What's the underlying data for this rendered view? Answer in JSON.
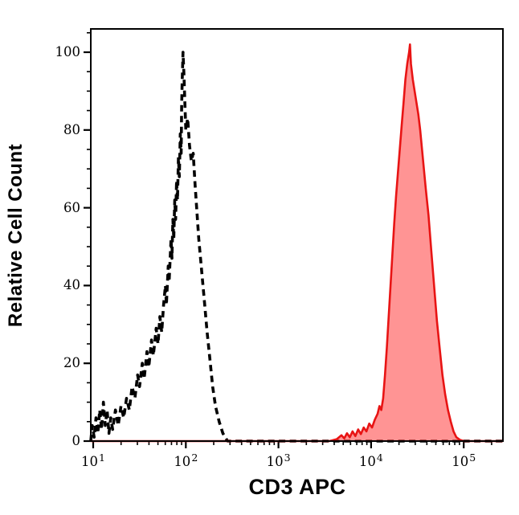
{
  "figure": {
    "x_axis_title": "CD3 APC",
    "y_axis_title": "Relative Cell Count",
    "y_tick_values": [
      0,
      20,
      40,
      60,
      80,
      100
    ],
    "y_minor_step": 5,
    "x_tick_exponents": [
      1,
      2,
      3,
      4,
      5
    ],
    "x_tick_base": "10",
    "colors": {
      "frame": "#000000",
      "dashed_series": "#000000",
      "red_stroke": "#e81414",
      "red_fill": "rgba(255,70,70,0.58)"
    }
  },
  "chart_data": {
    "type": "area",
    "subtype": "flow-cytometry-overlay-histogram",
    "title": "",
    "xlabel": "CD3 APC",
    "ylabel": "Relative Cell Count",
    "x_scale": "log10",
    "x_range_log10": [
      0.974,
      5.424
    ],
    "ylim": [
      0,
      106
    ],
    "grid": false,
    "legend": "none",
    "series": [
      {
        "name": "negative control (black dashed outline)",
        "style": {
          "stroke": "#000000",
          "stroke_width": 3.6,
          "dash": [
            8,
            5.5
          ],
          "fill": "none"
        },
        "peak": {
          "x_approx": 90,
          "height": 100
        },
        "points_log10x_count": [
          [
            0.974,
            0
          ],
          [
            0.99,
            4
          ],
          [
            1.01,
            1
          ],
          [
            1.03,
            6
          ],
          [
            1.05,
            2
          ],
          [
            1.07,
            8
          ],
          [
            1.09,
            3
          ],
          [
            1.11,
            10
          ],
          [
            1.13,
            4
          ],
          [
            1.15,
            8
          ],
          [
            1.17,
            2
          ],
          [
            1.19,
            6
          ],
          [
            1.21,
            3
          ],
          [
            1.24,
            8
          ],
          [
            1.27,
            4
          ],
          [
            1.3,
            9
          ],
          [
            1.33,
            6
          ],
          [
            1.36,
            11
          ],
          [
            1.39,
            8
          ],
          [
            1.42,
            14
          ],
          [
            1.45,
            11
          ],
          [
            1.48,
            17
          ],
          [
            1.5,
            14
          ],
          [
            1.53,
            20
          ],
          [
            1.55,
            16
          ],
          [
            1.58,
            23
          ],
          [
            1.6,
            19
          ],
          [
            1.63,
            26
          ],
          [
            1.65,
            22
          ],
          [
            1.68,
            29
          ],
          [
            1.7,
            25
          ],
          [
            1.72,
            32
          ],
          [
            1.74,
            28
          ],
          [
            1.76,
            35
          ],
          [
            1.78,
            40
          ],
          [
            1.79,
            35
          ],
          [
            1.81,
            45
          ],
          [
            1.82,
            41
          ],
          [
            1.84,
            52
          ],
          [
            1.85,
            47
          ],
          [
            1.86,
            57
          ],
          [
            1.87,
            52
          ],
          [
            1.88,
            62
          ],
          [
            1.89,
            57
          ],
          [
            1.9,
            67
          ],
          [
            1.91,
            62
          ],
          [
            1.92,
            73
          ],
          [
            1.93,
            68
          ],
          [
            1.94,
            79
          ],
          [
            1.95,
            74
          ],
          [
            1.955,
            86
          ],
          [
            1.96,
            92
          ],
          [
            1.97,
            100
          ],
          [
            1.98,
            94
          ],
          [
            1.99,
            87
          ],
          [
            2.0,
            80
          ],
          [
            2.02,
            83
          ],
          [
            2.04,
            76
          ],
          [
            2.06,
            72
          ],
          [
            2.08,
            74
          ],
          [
            2.1,
            66
          ],
          [
            2.12,
            59
          ],
          [
            2.14,
            52
          ],
          [
            2.17,
            44
          ],
          [
            2.2,
            36
          ],
          [
            2.23,
            28
          ],
          [
            2.26,
            21
          ],
          [
            2.29,
            14
          ],
          [
            2.32,
            9
          ],
          [
            2.36,
            5
          ],
          [
            2.4,
            2
          ],
          [
            2.45,
            0
          ],
          [
            5.424,
            0
          ]
        ]
      },
      {
        "name": "CD3 APC stained cells (red filled)",
        "style": {
          "stroke": "#e81414",
          "stroke_width": 2.6,
          "dash": null,
          "fill": "rgba(255,70,70,0.58)"
        },
        "peak": {
          "x_approx": 26000,
          "height": 102
        },
        "points_log10x_count": [
          [
            0.974,
            0
          ],
          [
            3.55,
            0
          ],
          [
            3.63,
            0.5
          ],
          [
            3.68,
            1.5
          ],
          [
            3.71,
            0.7
          ],
          [
            3.74,
            2
          ],
          [
            3.77,
            1
          ],
          [
            3.8,
            2.5
          ],
          [
            3.83,
            1.3
          ],
          [
            3.86,
            3
          ],
          [
            3.89,
            1.8
          ],
          [
            3.92,
            3.5
          ],
          [
            3.95,
            2.5
          ],
          [
            3.98,
            4.5
          ],
          [
            4.01,
            3.5
          ],
          [
            4.04,
            5.5
          ],
          [
            4.07,
            7
          ],
          [
            4.09,
            9
          ],
          [
            4.11,
            8
          ],
          [
            4.13,
            11
          ],
          [
            4.15,
            17
          ],
          [
            4.17,
            24
          ],
          [
            4.19,
            32
          ],
          [
            4.21,
            40
          ],
          [
            4.23,
            48
          ],
          [
            4.25,
            56
          ],
          [
            4.27,
            63
          ],
          [
            4.29,
            69
          ],
          [
            4.31,
            75
          ],
          [
            4.33,
            81
          ],
          [
            4.35,
            87
          ],
          [
            4.37,
            93
          ],
          [
            4.39,
            97
          ],
          [
            4.41,
            100
          ],
          [
            4.42,
            102
          ],
          [
            4.43,
            97
          ],
          [
            4.45,
            93
          ],
          [
            4.47,
            90
          ],
          [
            4.49,
            87
          ],
          [
            4.51,
            84
          ],
          [
            4.53,
            80
          ],
          [
            4.55,
            75
          ],
          [
            4.57,
            70
          ],
          [
            4.59,
            65
          ],
          [
            4.62,
            58
          ],
          [
            4.65,
            49
          ],
          [
            4.68,
            40
          ],
          [
            4.71,
            31
          ],
          [
            4.74,
            24
          ],
          [
            4.77,
            17
          ],
          [
            4.8,
            12
          ],
          [
            4.83,
            8
          ],
          [
            4.86,
            5
          ],
          [
            4.89,
            2.5
          ],
          [
            4.92,
            1
          ],
          [
            4.96,
            0.3
          ],
          [
            5.0,
            0
          ],
          [
            5.424,
            0
          ]
        ]
      }
    ]
  }
}
